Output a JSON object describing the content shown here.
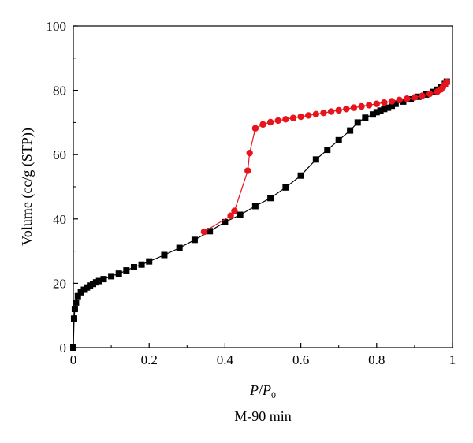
{
  "chart_data": {
    "type": "scatter",
    "xlabel": {
      "main": "P",
      "slash": "/",
      "base": "P",
      "subscript": "0"
    },
    "ylabel": "Volume (cc/g (STP))",
    "caption": "M-90 min",
    "xlim": [
      0,
      1
    ],
    "ylim": [
      0,
      100
    ],
    "x_ticks": [
      0,
      0.2,
      0.4,
      0.6,
      0.8,
      1
    ],
    "x_tick_labels": [
      "0",
      "0.2",
      "0.4",
      "0.6",
      "0.8",
      "1"
    ],
    "y_ticks": [
      0,
      20,
      40,
      60,
      80,
      100
    ],
    "y_tick_labels": [
      "0",
      "20",
      "40",
      "60",
      "80",
      "100"
    ],
    "grid": false,
    "series": [
      {
        "color": "#000000",
        "marker": "square",
        "x": [
          0.0,
          0.002,
          0.004,
          0.007,
          0.012,
          0.02,
          0.028,
          0.036,
          0.044,
          0.052,
          0.06,
          0.068,
          0.08,
          0.1,
          0.12,
          0.14,
          0.16,
          0.18,
          0.2,
          0.24,
          0.28,
          0.32,
          0.36,
          0.4,
          0.44,
          0.48,
          0.52,
          0.56,
          0.6,
          0.64,
          0.67,
          0.7,
          0.73,
          0.75,
          0.77,
          0.79,
          0.8,
          0.81,
          0.82,
          0.83,
          0.84,
          0.85,
          0.87,
          0.89,
          0.91,
          0.93,
          0.95,
          0.96,
          0.97,
          0.98,
          0.985
        ],
        "y": [
          0,
          9,
          12,
          14,
          16,
          17.2,
          18,
          18.7,
          19.3,
          19.8,
          20.3,
          20.7,
          21.3,
          22.2,
          23,
          24,
          25,
          25.8,
          26.8,
          28.8,
          31,
          33.5,
          36.2,
          39,
          41.3,
          44,
          46.5,
          49.8,
          53.5,
          58.5,
          61.5,
          64.5,
          67.5,
          70,
          71.5,
          72.5,
          73.2,
          73.7,
          74.2,
          74.6,
          75.2,
          75.8,
          76.5,
          77.2,
          78,
          78.7,
          79.5,
          80.2,
          81,
          82,
          82.7
        ]
      },
      {
        "color": "#e8141b",
        "marker": "circle",
        "x": [
          0.345,
          0.415,
          0.425,
          0.46,
          0.465,
          0.48,
          0.5,
          0.52,
          0.54,
          0.56,
          0.58,
          0.6,
          0.62,
          0.64,
          0.66,
          0.68,
          0.7,
          0.72,
          0.74,
          0.76,
          0.78,
          0.8,
          0.82,
          0.84,
          0.86,
          0.88,
          0.9,
          0.92,
          0.94,
          0.96,
          0.97,
          0.975,
          0.98,
          0.985
        ],
        "y": [
          36,
          41,
          42.5,
          55,
          60.5,
          68.2,
          69.4,
          70.1,
          70.6,
          71,
          71.4,
          71.8,
          72.2,
          72.6,
          73,
          73.4,
          73.8,
          74.2,
          74.6,
          75,
          75.4,
          75.8,
          76.2,
          76.6,
          77,
          77.4,
          77.8,
          78.3,
          78.9,
          79.6,
          80.3,
          81,
          81.8,
          82.6
        ]
      }
    ]
  }
}
